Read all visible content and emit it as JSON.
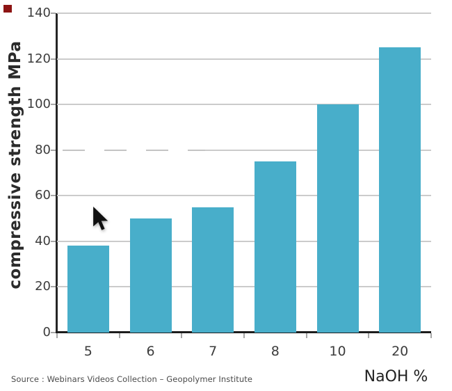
{
  "chart_data": {
    "type": "bar",
    "categories": [
      "5",
      "6",
      "7",
      "8",
      "10",
      "20"
    ],
    "values": [
      38,
      50,
      55,
      75,
      100,
      125
    ],
    "title": "",
    "xlabel": "NaOH %",
    "ylabel": "compressive strength MPa",
    "ylim": [
      0,
      140
    ],
    "yticks": [
      0,
      20,
      40,
      60,
      80,
      100,
      120,
      140
    ],
    "grid": "horizontal",
    "legend": "none",
    "bar_color": "#48aeca",
    "gridline_color": "#cbcbcb",
    "axis_color": "#262626",
    "label_color": "#3c3c3c",
    "dashed_gridline_value": 80
  },
  "footer": {
    "source": "Source : Webinars Videos Collection – Geopolymer Institute"
  },
  "decor": {
    "corner_marker_color": "#8d1413",
    "cursor": "arrow-pointer"
  }
}
